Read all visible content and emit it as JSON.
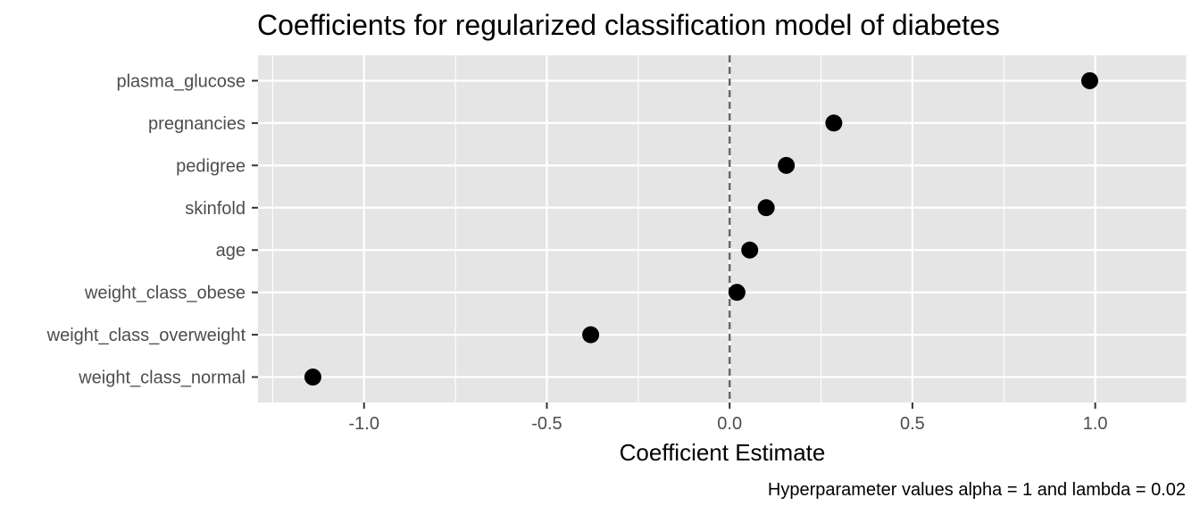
{
  "chart_data": {
    "type": "scatter",
    "title": "Coefficients for regularized classification model of diabetes",
    "xlabel": "Coefficient Estimate",
    "ylabel": "",
    "caption": "Hyperparameter values alpha = 1 and lambda = 0.02",
    "categories": [
      "plasma_glucose",
      "pregnancies",
      "pedigree",
      "skinfold",
      "age",
      "weight_class_obese",
      "weight_class_overweight",
      "weight_class_normal"
    ],
    "values": [
      0.985,
      0.285,
      0.155,
      0.1,
      0.055,
      0.02,
      -0.38,
      -1.14
    ],
    "xlim": [
      -1.29,
      1.25
    ],
    "xticks": [
      -1.0,
      -0.5,
      0.0,
      0.5,
      1.0
    ],
    "xtick_labels": [
      "-1.0",
      "-0.5",
      "0.0",
      "0.5",
      "1.0"
    ],
    "reference_line": 0,
    "grid": true,
    "legend": "none"
  },
  "colors": {
    "panel_background": "#e5e5e5",
    "grid": "#ffffff",
    "point": "#000000",
    "reference_line": "#666666",
    "tick_text": "#4d4d4d",
    "tick_mark": "#333333"
  }
}
